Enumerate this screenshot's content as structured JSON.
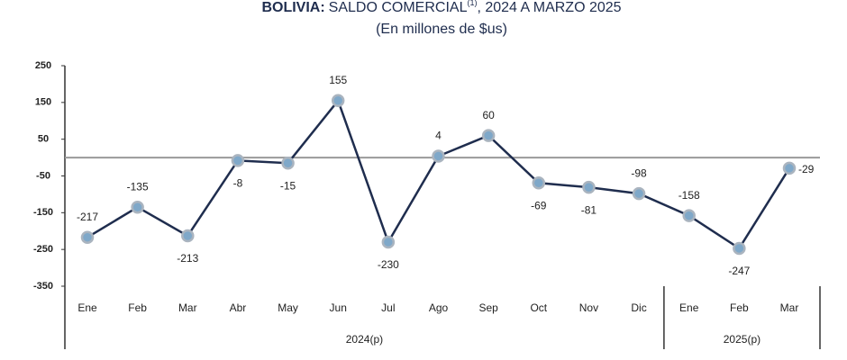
{
  "chart_data": {
    "type": "line",
    "title_bold": "BOLIVIA:",
    "title": "SALDO COMERCIAL",
    "title_note": "(1)",
    "title_rest": ", 2024 A MARZO 2025",
    "subtitle": "(En millones de $us)",
    "categories": [
      "Ene",
      "Feb",
      "Mar",
      "Abr",
      "May",
      "Jun",
      "Jul",
      "Ago",
      "Sep",
      "Oct",
      "Nov",
      "Dic",
      "Ene",
      "Feb",
      "Mar"
    ],
    "groups": [
      {
        "label": "2024(p)",
        "span": 12
      },
      {
        "label": "2025(p)",
        "span": 3
      }
    ],
    "series": [
      {
        "color": "#1f2d4e",
        "marker_color": "#7fa8c9",
        "values": [
          -217,
          -135,
          -213,
          -8,
          -15,
          155,
          -230,
          4,
          60,
          -69,
          -81,
          -98,
          -158,
          -247,
          -29
        ]
      }
    ],
    "ylim": [
      -350,
      250
    ],
    "yticks": [
      250,
      150,
      50,
      -50,
      -150,
      -250,
      -350
    ],
    "zero_line": 0
  }
}
